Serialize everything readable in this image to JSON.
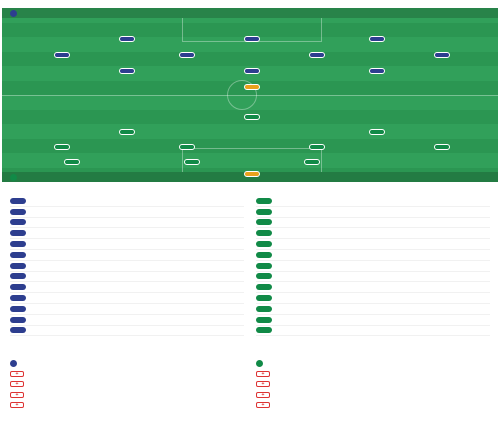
{
  "colors": {
    "pitch": "#31a05a",
    "home": "#2d3e8f",
    "away": "#118a47",
    "gk": "#e9a11c",
    "injury": "#d33333"
  },
  "lineups": {
    "title": "",
    "subtitle": "",
    "home_team": "",
    "away_team": "",
    "home_formation": "",
    "away_formation": "",
    "home_meta": "",
    "away_meta": "",
    "home": [
      {
        "num": "",
        "name": "",
        "rating": "",
        "gk": false
      },
      {
        "num": "",
        "name": "",
        "rating": "",
        "gk": false
      },
      {
        "num": "",
        "name": "",
        "rating": "",
        "gk": false
      },
      {
        "num": "",
        "name": "",
        "rating": "",
        "gk": false
      },
      {
        "num": "",
        "name": "",
        "rating": "",
        "gk": false
      },
      {
        "num": "",
        "name": "",
        "rating": "",
        "gk": false
      },
      {
        "num": "",
        "name": "",
        "rating": "",
        "gk": false
      },
      {
        "num": "",
        "name": "",
        "rating": "",
        "gk": false
      },
      {
        "num": "",
        "name": "",
        "rating": "",
        "gk": false
      },
      {
        "num": "",
        "name": "",
        "rating": "",
        "gk": false
      },
      {
        "num": "",
        "name": "",
        "rating": "",
        "gk": true
      }
    ],
    "away": [
      {
        "num": "",
        "name": "",
        "rating": "",
        "gk": false
      },
      {
        "num": "",
        "name": "",
        "rating": "",
        "gk": false
      },
      {
        "num": "",
        "name": "",
        "rating": "",
        "gk": false
      },
      {
        "num": "",
        "name": "",
        "rating": "",
        "gk": false
      },
      {
        "num": "",
        "name": "",
        "rating": "",
        "gk": false
      },
      {
        "num": "",
        "name": "",
        "rating": "",
        "gk": false
      },
      {
        "num": "",
        "name": "",
        "rating": "",
        "gk": false
      },
      {
        "num": "",
        "name": "",
        "rating": "",
        "gk": false
      },
      {
        "num": "",
        "name": "",
        "rating": "",
        "gk": false
      },
      {
        "num": "",
        "name": "",
        "rating": "",
        "gk": false
      },
      {
        "num": "",
        "name": "",
        "rating": "",
        "gk": true
      }
    ],
    "mid_left_note": "",
    "mid_right_note": ""
  },
  "subs": {
    "title": "",
    "home": [
      {
        "num": "",
        "name": "",
        "pos": "",
        "event": ""
      },
      {
        "num": "",
        "name": "",
        "pos": "",
        "event": ""
      },
      {
        "num": "",
        "name": "",
        "pos": "",
        "event": ""
      },
      {
        "num": "",
        "name": "",
        "pos": "",
        "event": ""
      },
      {
        "num": "",
        "name": "",
        "pos": "",
        "event": ""
      },
      {
        "num": "",
        "name": "",
        "pos": "",
        "event": ""
      },
      {
        "num": "",
        "name": "",
        "pos": "",
        "event": ""
      },
      {
        "num": "",
        "name": "",
        "pos": "",
        "event": ""
      },
      {
        "num": "",
        "name": "",
        "pos": "",
        "event": ""
      },
      {
        "num": "",
        "name": "",
        "pos": "",
        "event": ""
      },
      {
        "num": "",
        "name": "",
        "pos": "",
        "event": ""
      },
      {
        "num": "",
        "name": "",
        "pos": "",
        "event": ""
      },
      {
        "num": "",
        "name": "",
        "pos": "",
        "event": ""
      }
    ],
    "away": [
      {
        "num": "",
        "name": "",
        "pos": "",
        "event": ""
      },
      {
        "num": "",
        "name": "",
        "pos": "",
        "event": ""
      },
      {
        "num": "",
        "name": "",
        "pos": "",
        "event": ""
      },
      {
        "num": "",
        "name": "",
        "pos": "",
        "event": ""
      },
      {
        "num": "",
        "name": "",
        "pos": "",
        "event": ""
      },
      {
        "num": "",
        "name": "",
        "pos": "",
        "event": ""
      },
      {
        "num": "",
        "name": "",
        "pos": "",
        "event": ""
      },
      {
        "num": "",
        "name": "",
        "pos": "",
        "event": ""
      },
      {
        "num": "",
        "name": "",
        "pos": "",
        "event": ""
      },
      {
        "num": "",
        "name": "",
        "pos": "",
        "event": ""
      },
      {
        "num": "",
        "name": "",
        "pos": "",
        "event": ""
      },
      {
        "num": "",
        "name": "",
        "pos": "",
        "event": ""
      },
      {
        "num": "",
        "name": "",
        "pos": "",
        "event": ""
      }
    ]
  },
  "injuries": {
    "title": "",
    "home_team": "",
    "away_team": "",
    "home": [
      {
        "name": "",
        "reason": ""
      },
      {
        "name": "",
        "reason": ""
      },
      {
        "name": "",
        "reason": ""
      },
      {
        "name": "",
        "reason": ""
      }
    ],
    "away": [
      {
        "name": "",
        "reason": ""
      },
      {
        "name": "",
        "reason": ""
      },
      {
        "name": "",
        "reason": ""
      },
      {
        "name": "",
        "reason": ""
      }
    ]
  }
}
